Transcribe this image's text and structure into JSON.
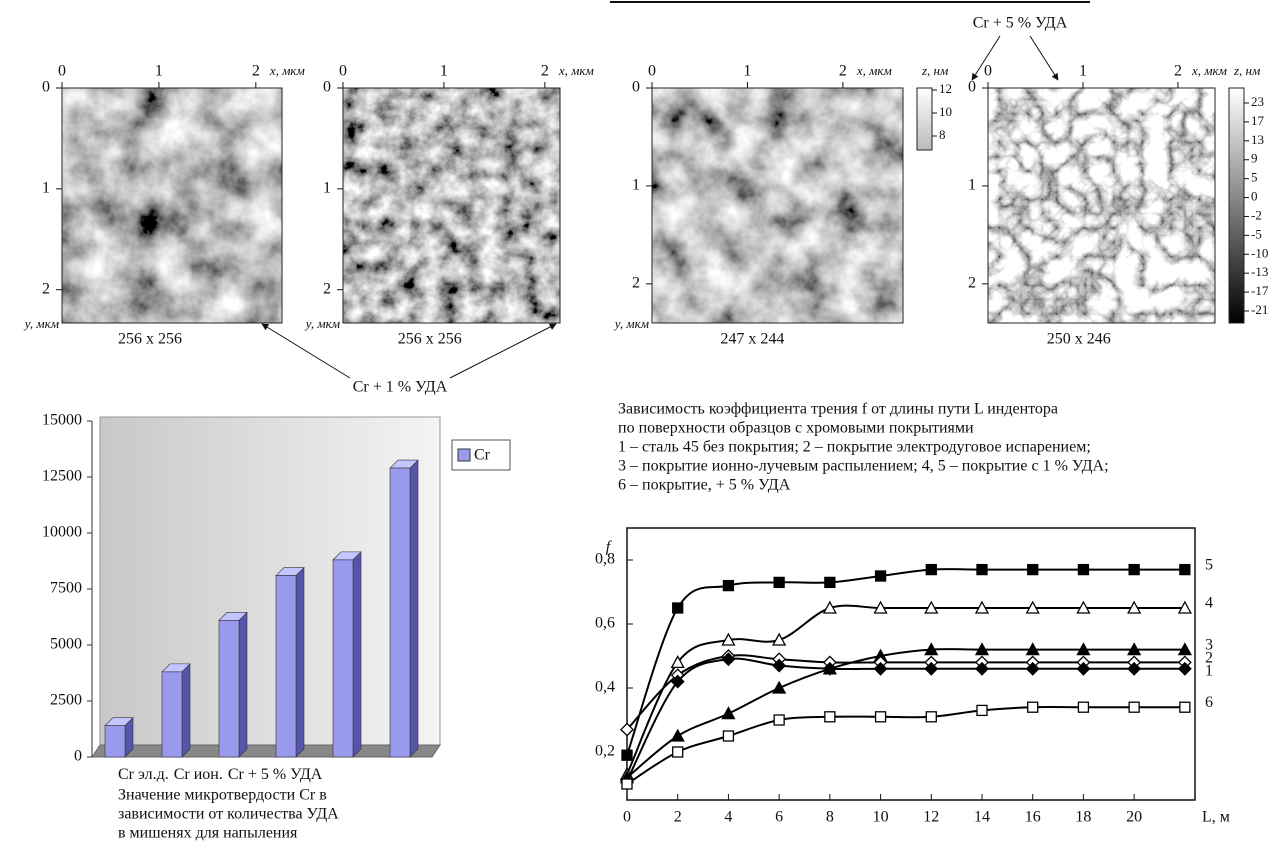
{
  "afm": {
    "annotations": [
      "Cr + 5 % УДА",
      "Cr + 1 % УДА"
    ],
    "panels": [
      {
        "xticks": [
          0,
          1,
          2
        ],
        "yticks": [
          0,
          1,
          2
        ],
        "xlim": [
          0,
          2.27
        ],
        "ylim": [
          0,
          2.33
        ],
        "xlabel": "x, мкм",
        "ylabel": "y, мкм",
        "caption": "256 x 256"
      },
      {
        "xticks": [
          0,
          1,
          2
        ],
        "yticks": [
          0,
          1,
          2
        ],
        "xlim": [
          0,
          2.15
        ],
        "ylim": [
          0,
          2.33
        ],
        "xlabel": "x, мкм",
        "ylabel": "y, мкм",
        "caption": "256 x 256"
      },
      {
        "xticks": [
          0,
          1,
          2
        ],
        "yticks": [
          0,
          1,
          2
        ],
        "xlim": [
          0,
          2.63
        ],
        "ylim": [
          0,
          2.4
        ],
        "xlabel": "x, мкм",
        "ylabel": "y, мкм",
        "caption": "247 x 244",
        "colorbar": {
          "label": "z, нм",
          "ticks": [
            12,
            10,
            8
          ]
        }
      },
      {
        "xticks": [
          0,
          1,
          2
        ],
        "yticks": [
          0,
          1,
          2
        ],
        "xlim": [
          0,
          2.39
        ],
        "ylim": [
          0,
          2.4
        ],
        "xlabel": "x, мкм",
        "caption": "250 x 246",
        "colorbar": {
          "label": "z, нм",
          "ticks": [
            23,
            17,
            13,
            9,
            5,
            0,
            -2,
            -5,
            -10,
            -13,
            -17,
            -21
          ]
        }
      }
    ]
  },
  "chart_data": [
    {
      "type": "bar",
      "categories": [
        "Cr эл.д.",
        "Cr ион.",
        null,
        null,
        null,
        "Cr + 5 % УДА"
      ],
      "series": [
        {
          "name": "Cr",
          "color": "#9999ee",
          "values": [
            1400,
            3800,
            6100,
            8100,
            8800,
            12900
          ]
        }
      ],
      "ylim": [
        0,
        15000
      ],
      "yticks": [
        0,
        2500,
        5000,
        7500,
        10000,
        12500,
        15000
      ],
      "caption": [
        "Значение микротвердости Cr в",
        "зависимости от количества УДА",
        "в мишенях для напыления"
      ]
    },
    {
      "type": "line",
      "caption": [
        "Зависимость коэффициента трения f от длины пути L индентора",
        "по поверхности образцов с хромовыми покрытиями",
        "1  – сталь 45 без покрытия; 2 – покрытие электродуговое испарением;",
        "3 – покрытие ионно-лучевым распылением; 4, 5 – покрытие с 1 % УДА;",
        "6 – покрытие, + 5 % УДА"
      ],
      "xlabel": "L, м",
      "ylabel": "f",
      "x": [
        0,
        2,
        4,
        6,
        8,
        10,
        12,
        14,
        16,
        18,
        20,
        22
      ],
      "xlim": [
        0,
        22.4
      ],
      "xticks": [
        0,
        2,
        4,
        6,
        8,
        10,
        12,
        14,
        16,
        18,
        20
      ],
      "ylim": [
        0.05,
        0.9
      ],
      "yticks": [
        {
          "value": 0.2,
          "label": "0,2"
        },
        {
          "value": 0.4,
          "label": "0,4"
        },
        {
          "value": 0.6,
          "label": "0,6"
        },
        {
          "value": 0.8,
          "label": "0,8"
        }
      ],
      "series": [
        {
          "name": "5",
          "color": "#000000",
          "marker": "square",
          "filled": true,
          "values": [
            0.19,
            0.65,
            0.72,
            0.73,
            0.73,
            0.75,
            0.77,
            0.77,
            0.77,
            0.77,
            0.77,
            0.77
          ]
        },
        {
          "name": "4",
          "color": "#000000",
          "marker": "triangle",
          "filled": false,
          "values": [
            0.13,
            0.48,
            0.55,
            0.55,
            0.65,
            0.65,
            0.65,
            0.65,
            0.65,
            0.65,
            0.65,
            0.65
          ]
        },
        {
          "name": "3",
          "color": "#000000",
          "marker": "triangle",
          "filled": true,
          "values": [
            0.12,
            0.25,
            0.32,
            0.4,
            0.46,
            0.5,
            0.52,
            0.52,
            0.52,
            0.52,
            0.52,
            0.52
          ]
        },
        {
          "name": "2",
          "color": "#000000",
          "marker": "diamond",
          "filled": false,
          "values": [
            0.27,
            0.44,
            0.5,
            0.49,
            0.48,
            0.48,
            0.48,
            0.48,
            0.48,
            0.48,
            0.48,
            0.48
          ]
        },
        {
          "name": "1",
          "color": "#000000",
          "marker": "diamond",
          "filled": true,
          "values": [
            0.11,
            0.42,
            0.49,
            0.47,
            0.46,
            0.46,
            0.46,
            0.46,
            0.46,
            0.46,
            0.46,
            0.46
          ]
        },
        {
          "name": "6",
          "color": "#000000",
          "marker": "square",
          "filled": false,
          "values": [
            0.1,
            0.2,
            0.25,
            0.3,
            0.31,
            0.31,
            0.31,
            0.33,
            0.34,
            0.34,
            0.34,
            0.34
          ]
        }
      ]
    }
  ]
}
